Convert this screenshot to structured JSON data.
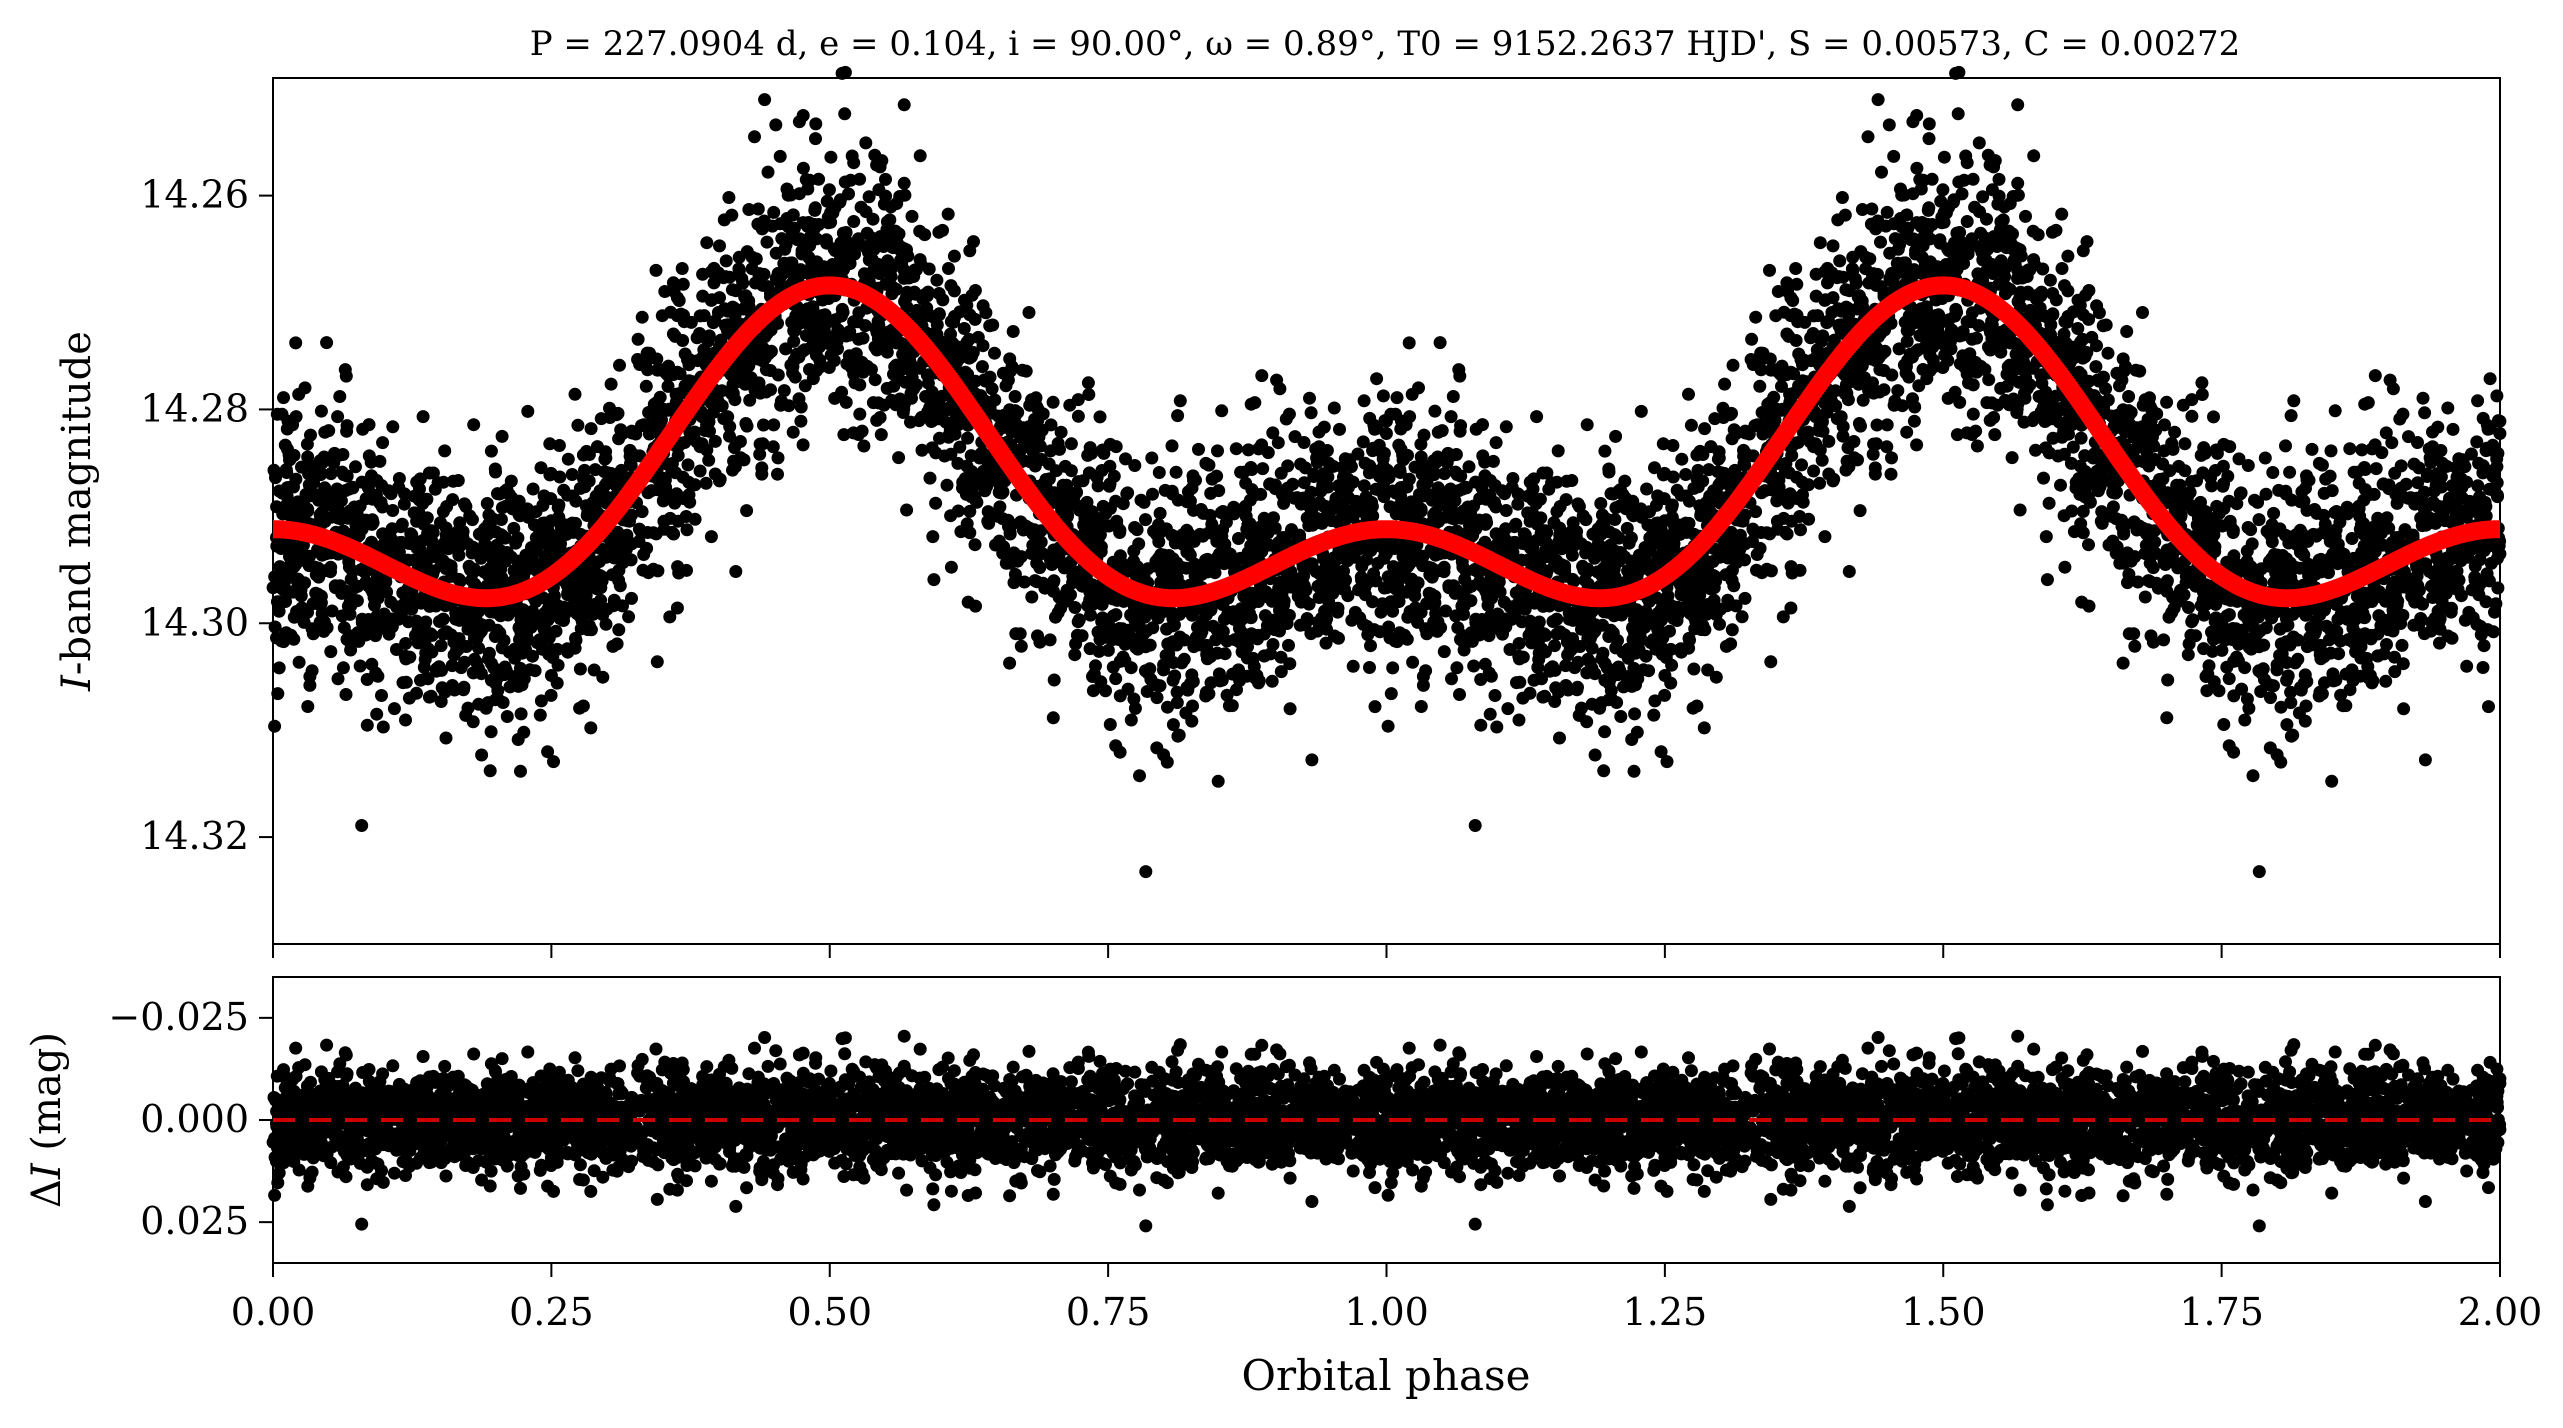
{
  "chart_data": {
    "type": "scatter",
    "title": "P = 227.0904 d, e = 0.104, i = 90.00°, ω = 0.89°, T0 = 9152.2637 HJD', S = 0.00573, C = 0.00272",
    "xlabel": "Orbital phase",
    "xlim": [
      0.0,
      2.0
    ],
    "x_ticks": [
      "0.00",
      "0.25",
      "0.50",
      "0.75",
      "1.00",
      "1.25",
      "1.50",
      "1.75",
      "2.00"
    ],
    "panels": [
      {
        "name": "top",
        "ylabel_italic": "I",
        "ylabel_rest": "-band magnitude",
        "ylim": [
          14.33,
          14.249
        ],
        "inverted": true,
        "y_ticks": [
          "14.26",
          "14.28",
          "14.30",
          "14.32"
        ],
        "point_color": "#000000",
        "fit_color": "#ff0000",
        "fit_model": {
          "mean": 14.2877,
          "components": [
            {
              "amp": 0.0114,
              "freq": 1,
              "phase_shift": 0.0
            },
            {
              "amp": -0.0079,
              "freq": 2,
              "phase_shift": 0.0
            }
          ]
        },
        "scatter_sigma": 0.0055
      },
      {
        "name": "bottom",
        "ylabel_prefix": "Δ",
        "ylabel_italic": "I",
        "ylabel_rest": " (mag)",
        "ylim": [
          0.035,
          -0.035
        ],
        "inverted": true,
        "y_ticks": [
          "−0.025",
          "0.000",
          "0.025"
        ],
        "point_color": "#000000",
        "zero_line_color": "#cc0000",
        "scatter_sigma": 0.0055
      }
    ]
  }
}
